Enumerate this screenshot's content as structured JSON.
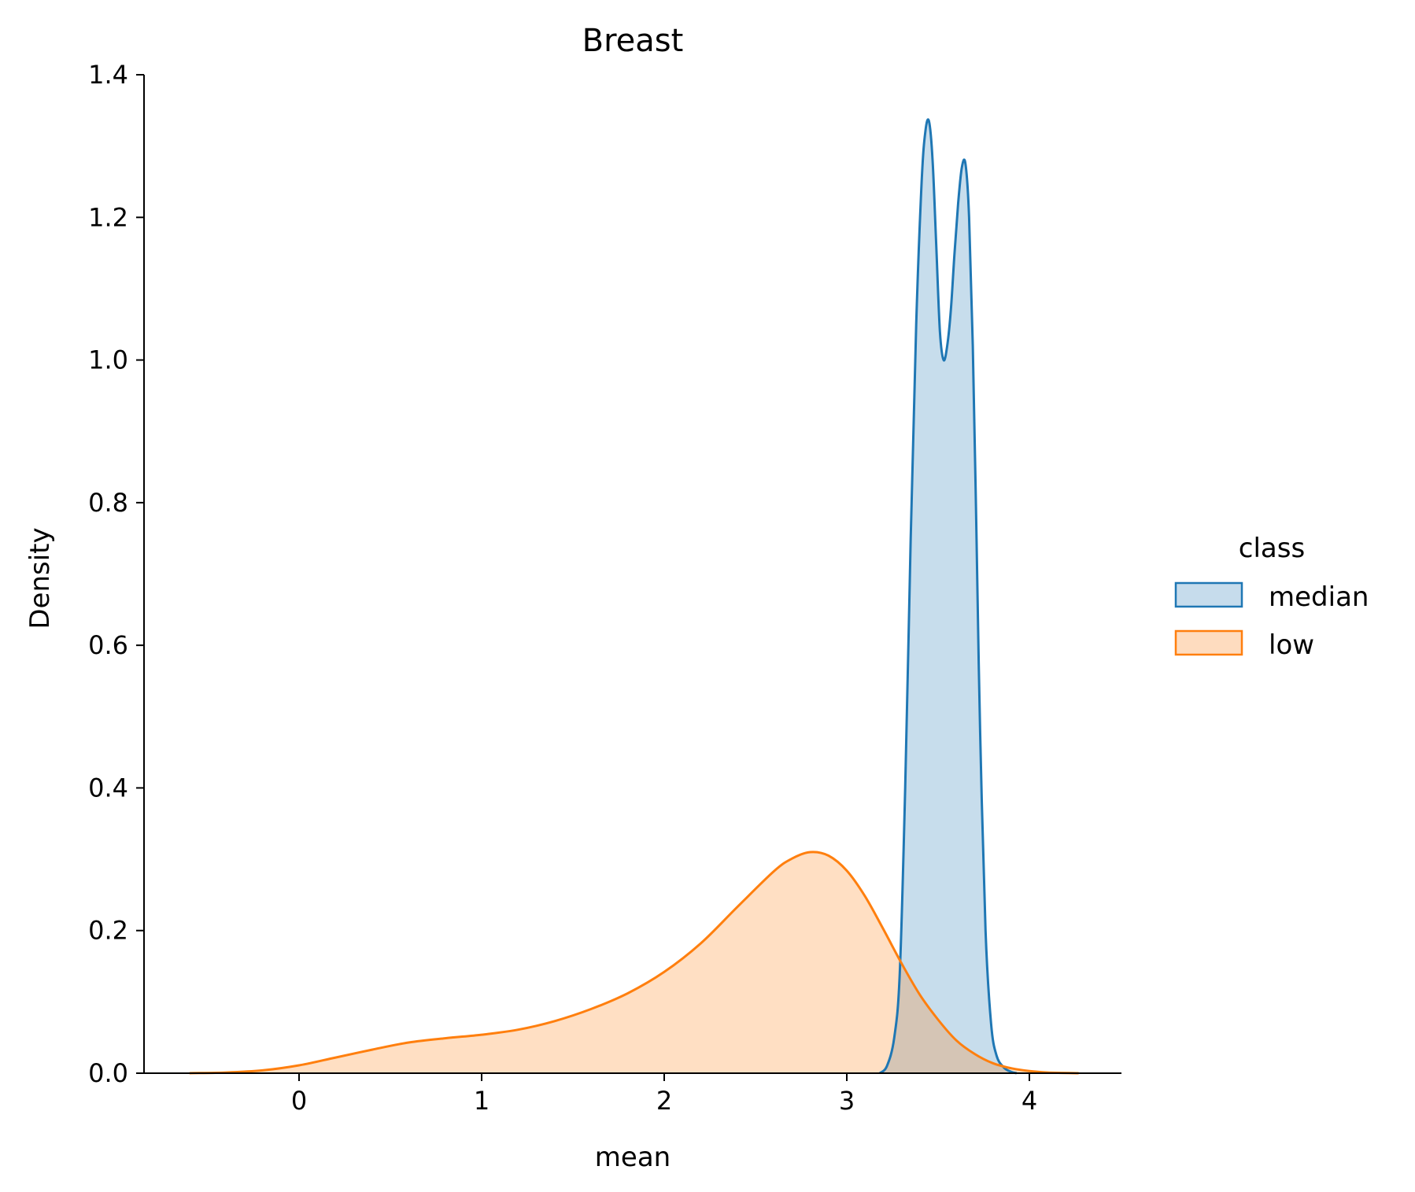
{
  "chart_data": {
    "type": "area",
    "title": "Breast",
    "xlabel": "mean",
    "ylabel": "Density",
    "xlim": [
      -0.85,
      4.5
    ],
    "ylim": [
      0,
      1.4
    ],
    "xticks": [
      0,
      1,
      2,
      3,
      4
    ],
    "yticks": [
      0.0,
      0.2,
      0.4,
      0.6,
      0.8,
      1.0,
      1.2,
      1.4
    ],
    "xtick_labels": [
      "0",
      "1",
      "2",
      "3",
      "4"
    ],
    "ytick_labels": [
      "0.0",
      "0.2",
      "0.4",
      "0.6",
      "0.8",
      "1.0",
      "1.2",
      "1.4"
    ],
    "grid": false,
    "legend": {
      "title": "class",
      "placement": "right, outside plot"
    },
    "series": [
      {
        "name": "median",
        "color": "#1f77b4",
        "fill": "#c6dcec",
        "x": [
          3.18,
          3.22,
          3.26,
          3.29,
          3.32,
          3.35,
          3.38,
          3.41,
          3.43,
          3.45,
          3.47,
          3.49,
          3.51,
          3.53,
          3.55,
          3.57,
          3.59,
          3.61,
          3.63,
          3.65,
          3.67,
          3.69,
          3.71,
          3.73,
          3.76,
          3.79,
          3.82,
          3.86,
          3.9,
          3.93
        ],
        "y": [
          0.0,
          0.01,
          0.05,
          0.14,
          0.4,
          0.75,
          1.05,
          1.25,
          1.32,
          1.335,
          1.28,
          1.16,
          1.04,
          1.0,
          1.02,
          1.07,
          1.15,
          1.22,
          1.27,
          1.275,
          1.2,
          1.02,
          0.76,
          0.48,
          0.2,
          0.07,
          0.025,
          0.008,
          0.002,
          0.0
        ]
      },
      {
        "name": "low",
        "color": "#ff7f0e",
        "fill": "#fedcbf",
        "x": [
          -0.6,
          -0.4,
          -0.2,
          0.0,
          0.2,
          0.4,
          0.6,
          0.8,
          1.0,
          1.2,
          1.4,
          1.6,
          1.8,
          2.0,
          2.2,
          2.4,
          2.6,
          2.7,
          2.8,
          2.9,
          3.0,
          3.1,
          3.2,
          3.3,
          3.4,
          3.5,
          3.6,
          3.7,
          3.8,
          3.9,
          4.0,
          4.1,
          4.27
        ],
        "y": [
          0.0,
          0.001,
          0.004,
          0.011,
          0.022,
          0.033,
          0.043,
          0.049,
          0.054,
          0.061,
          0.073,
          0.09,
          0.112,
          0.142,
          0.182,
          0.233,
          0.283,
          0.301,
          0.31,
          0.305,
          0.284,
          0.248,
          0.202,
          0.154,
          0.11,
          0.075,
          0.046,
          0.027,
          0.014,
          0.007,
          0.003,
          0.001,
          0.0
        ]
      }
    ]
  }
}
